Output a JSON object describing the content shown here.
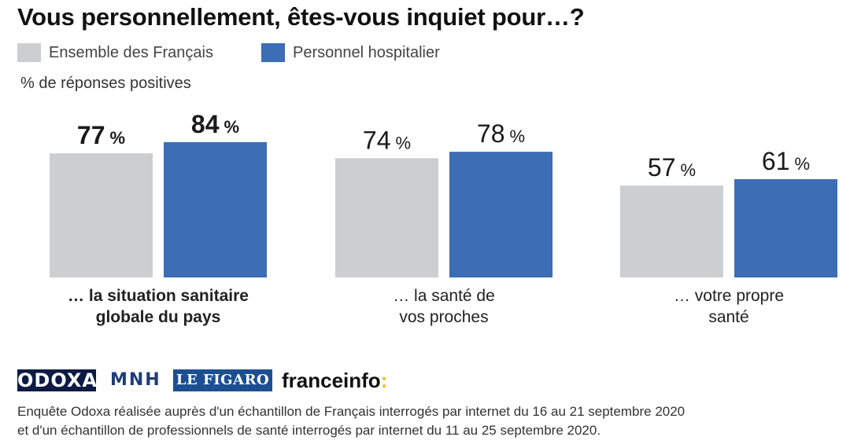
{
  "chart_data": {
    "type": "bar",
    "title": "Vous personnellement, êtes-vous inquiet pour…?",
    "subtitle": "% de réponses positives",
    "ylim": [
      0,
      100
    ],
    "unit": "%",
    "categories": [
      {
        "lines": [
          "… la situation sanitaire",
          "globale du pays"
        ],
        "bold": true
      },
      {
        "lines": [
          "… la santé de",
          "vos proches"
        ],
        "bold": false
      },
      {
        "lines": [
          "… votre propre",
          "santé"
        ],
        "bold": false
      }
    ],
    "series": [
      {
        "name": "Ensemble des Français",
        "color": "#cdced0",
        "values": [
          77,
          74,
          57
        ]
      },
      {
        "name": "Personnel hospitalier",
        "color": "#3d6db5",
        "values": [
          84,
          78,
          61
        ]
      }
    ],
    "legend": "top-left"
  },
  "logos": {
    "odoxa": "ODOXA",
    "mnh": "MNH",
    "figaro": "LE FIGARO",
    "franceinfo": "franceinfo",
    "franceinfo_colon": ":"
  },
  "footnote": {
    "line1": "Enquête Odoxa réalisée auprès d'un échantillon de Français interrogés par internet du 16 au 21 septembre 2020",
    "line2": "et d'un échantillon de professionnels de santé interrogés par internet du 11 au 25 septembre 2020."
  }
}
